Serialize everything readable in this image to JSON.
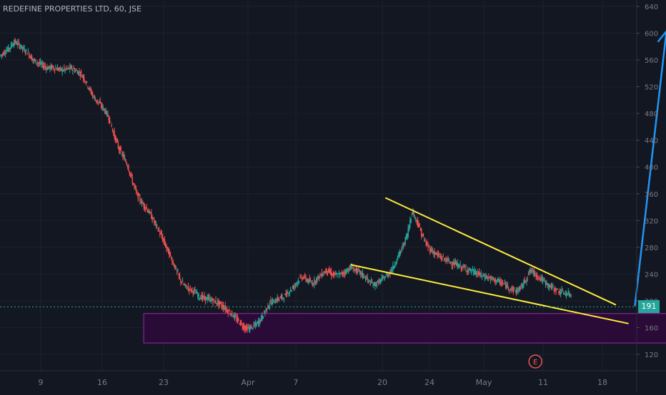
{
  "header": {
    "title": "REDEFINE PROPERTIES LTD, 60, JSE"
  },
  "price_badge": "191",
  "earnings_marker": "E",
  "colors": {
    "background": "#131722",
    "up": "#26a69a",
    "down": "#ef5350",
    "trendline": "#ffeb3b",
    "zone_fill": "#2a0a36",
    "zone_border": "#9c27b0",
    "arrow": "#2196f3",
    "axis_text": "#787b86",
    "price_line": "#26a69a"
  },
  "chart_data": {
    "type": "candlestick",
    "y_axis": {
      "labels": [
        "640",
        "600",
        "560",
        "520",
        "480",
        "440",
        "400",
        "360",
        "320",
        "280",
        "240",
        "200",
        "160",
        "120"
      ],
      "ylim": [
        100,
        650
      ]
    },
    "x_axis": {
      "labels": [
        "9",
        "16",
        "23",
        "Apr",
        "7",
        "20",
        "24",
        "May",
        "11",
        "18"
      ]
    },
    "close_path": [
      [
        0,
        566
      ],
      [
        3,
        572
      ],
      [
        6,
        578
      ],
      [
        9,
        587
      ],
      [
        12,
        583
      ],
      [
        15,
        576
      ],
      [
        18,
        570
      ],
      [
        21,
        560
      ],
      [
        24,
        556
      ],
      [
        27,
        552
      ],
      [
        30,
        548
      ],
      [
        33,
        549
      ],
      [
        36,
        547
      ],
      [
        39,
        545
      ],
      [
        42,
        546
      ],
      [
        45,
        548
      ],
      [
        48,
        544
      ],
      [
        51,
        540
      ],
      [
        54,
        530
      ],
      [
        57,
        515
      ],
      [
        60,
        502
      ],
      [
        63,
        495
      ],
      [
        66,
        486
      ],
      [
        69,
        474
      ],
      [
        72,
        450
      ],
      [
        75,
        430
      ],
      [
        78,
        416
      ],
      [
        81,
        402
      ],
      [
        84,
        378
      ],
      [
        87,
        358
      ],
      [
        90,
        346
      ],
      [
        93,
        338
      ],
      [
        96,
        326
      ],
      [
        99,
        312
      ],
      [
        102,
        298
      ],
      [
        105,
        282
      ],
      [
        108,
        266
      ],
      [
        111,
        250
      ],
      [
        114,
        232
      ],
      [
        117,
        222
      ],
      [
        120,
        218
      ],
      [
        123,
        214
      ],
      [
        126,
        207
      ],
      [
        129,
        204
      ],
      [
        132,
        203
      ],
      [
        135,
        200
      ],
      [
        138,
        197
      ],
      [
        141,
        192
      ],
      [
        144,
        186
      ],
      [
        147,
        180
      ],
      [
        150,
        172
      ],
      [
        153,
        165
      ],
      [
        156,
        158
      ],
      [
        159,
        160
      ],
      [
        162,
        164
      ],
      [
        165,
        172
      ],
      [
        168,
        185
      ],
      [
        171,
        197
      ],
      [
        174,
        200
      ],
      [
        177,
        204
      ],
      [
        180,
        206
      ],
      [
        183,
        214
      ],
      [
        186,
        221
      ],
      [
        189,
        231
      ],
      [
        192,
        236
      ],
      [
        195,
        230
      ],
      [
        198,
        226
      ],
      [
        201,
        234
      ],
      [
        204,
        240
      ],
      [
        207,
        246
      ],
      [
        210,
        240
      ],
      [
        213,
        238
      ],
      [
        216,
        240
      ],
      [
        219,
        244
      ],
      [
        222,
        250
      ],
      [
        225,
        246
      ],
      [
        228,
        242
      ],
      [
        231,
        236
      ],
      [
        234,
        228
      ],
      [
        237,
        224
      ],
      [
        240,
        228
      ],
      [
        243,
        234
      ],
      [
        246,
        240
      ],
      [
        249,
        250
      ],
      [
        252,
        266
      ],
      [
        255,
        280
      ],
      [
        258,
        300
      ],
      [
        261,
        334
      ],
      [
        264,
        320
      ],
      [
        267,
        300
      ],
      [
        270,
        284
      ],
      [
        273,
        276
      ],
      [
        276,
        270
      ],
      [
        279,
        265
      ],
      [
        282,
        262
      ],
      [
        285,
        258
      ],
      [
        288,
        255
      ],
      [
        291,
        252
      ],
      [
        294,
        249
      ],
      [
        297,
        246
      ],
      [
        300,
        243
      ],
      [
        303,
        240
      ],
      [
        306,
        237
      ],
      [
        309,
        235
      ],
      [
        312,
        232
      ],
      [
        315,
        230
      ],
      [
        318,
        226
      ],
      [
        321,
        222
      ],
      [
        324,
        218
      ],
      [
        327,
        214
      ],
      [
        330,
        220
      ],
      [
        333,
        232
      ],
      [
        336,
        246
      ],
      [
        339,
        240
      ],
      [
        342,
        234
      ],
      [
        345,
        228
      ],
      [
        348,
        222
      ],
      [
        351,
        218
      ],
      [
        354,
        214
      ],
      [
        357,
        212
      ],
      [
        360,
        210
      ],
      [
        363,
        208
      ],
      [
        366,
        206
      ],
      [
        369,
        203
      ],
      [
        372,
        200
      ],
      [
        375,
        198
      ],
      [
        378,
        196
      ],
      [
        381,
        194
      ],
      [
        384,
        192
      ],
      [
        387,
        191
      ]
    ],
    "annotations": {
      "upper_trendline": [
        [
          244,
          354
        ],
        [
          390,
          194
        ]
      ],
      "lower_trendline": [
        [
          222,
          254
        ],
        [
          398,
          166
        ]
      ],
      "support_zone": {
        "x": [
          91,
          423
        ],
        "y": [
          137,
          181
        ]
      },
      "target_arrow": {
        "from": [
          402,
          192
        ],
        "to": [
          422,
          603
        ]
      },
      "current_price_line": 191,
      "earnings_x": 339
    }
  }
}
